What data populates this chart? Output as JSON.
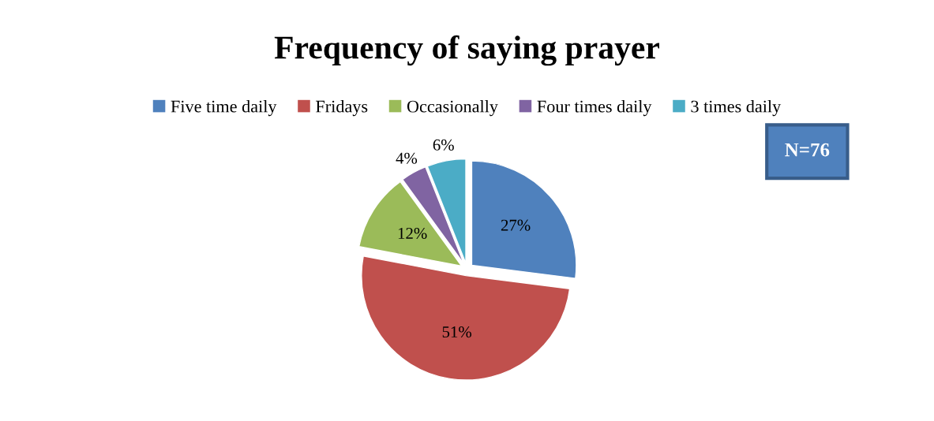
{
  "chart_data": {
    "type": "pie",
    "title": "Frequency of saying prayer",
    "categories": [
      "Five time daily",
      "Fridays",
      "Occasionally",
      "Four times daily",
      "3 times daily"
    ],
    "values": [
      27,
      51,
      12,
      4,
      6
    ],
    "colors": [
      "#4f81bd",
      "#c0504d",
      "#9bbb59",
      "#8064a2",
      "#4bacc6"
    ],
    "value_labels": [
      "27%",
      "51%",
      "12%",
      "4%",
      "6%"
    ],
    "legend": "top",
    "annotations": [
      "N=76"
    ]
  }
}
